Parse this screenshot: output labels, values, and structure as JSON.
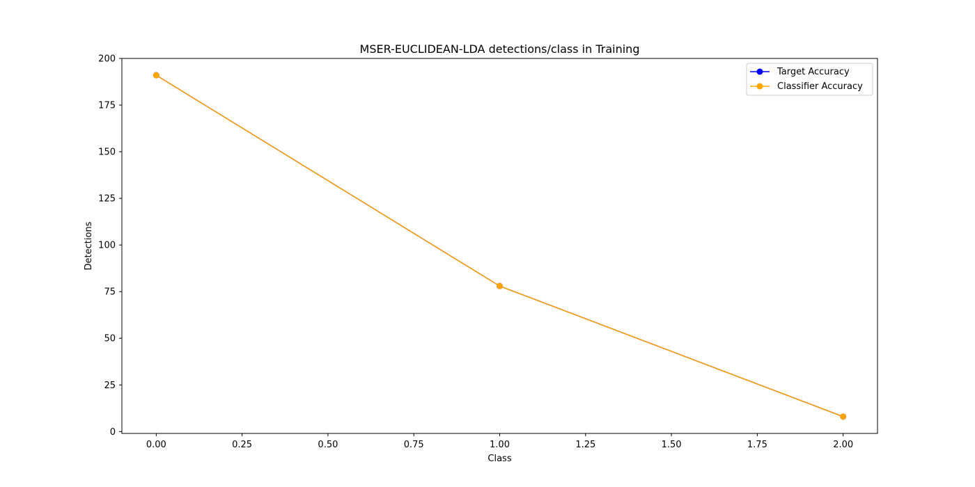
{
  "chart_data": {
    "type": "line",
    "title": "MSER-EUCLIDEAN-LDA detections/class in Training",
    "xlabel": "Class",
    "ylabel": "Detections",
    "xlim": [
      -0.1,
      2.1
    ],
    "ylim": [
      -1,
      200
    ],
    "xticks": [
      0.0,
      0.25,
      0.5,
      0.75,
      1.0,
      1.25,
      1.5,
      1.75,
      2.0
    ],
    "xtick_labels": [
      "0.00",
      "0.25",
      "0.50",
      "0.75",
      "1.00",
      "1.25",
      "1.50",
      "1.75",
      "2.00"
    ],
    "yticks": [
      0,
      25,
      50,
      75,
      100,
      125,
      150,
      175,
      200
    ],
    "ytick_labels": [
      "0",
      "25",
      "50",
      "75",
      "100",
      "125",
      "150",
      "175",
      "200"
    ],
    "grid": false,
    "legend_position": "top-right",
    "x": [
      0,
      1,
      2
    ],
    "series": [
      {
        "name": "Target Accuracy",
        "values": [
          191,
          78,
          8
        ],
        "color": "#0000ff",
        "marker": "circle"
      },
      {
        "name": "Classifier Accuracy",
        "values": [
          191,
          78,
          8
        ],
        "color": "#ffa500",
        "marker": "circle"
      }
    ]
  }
}
